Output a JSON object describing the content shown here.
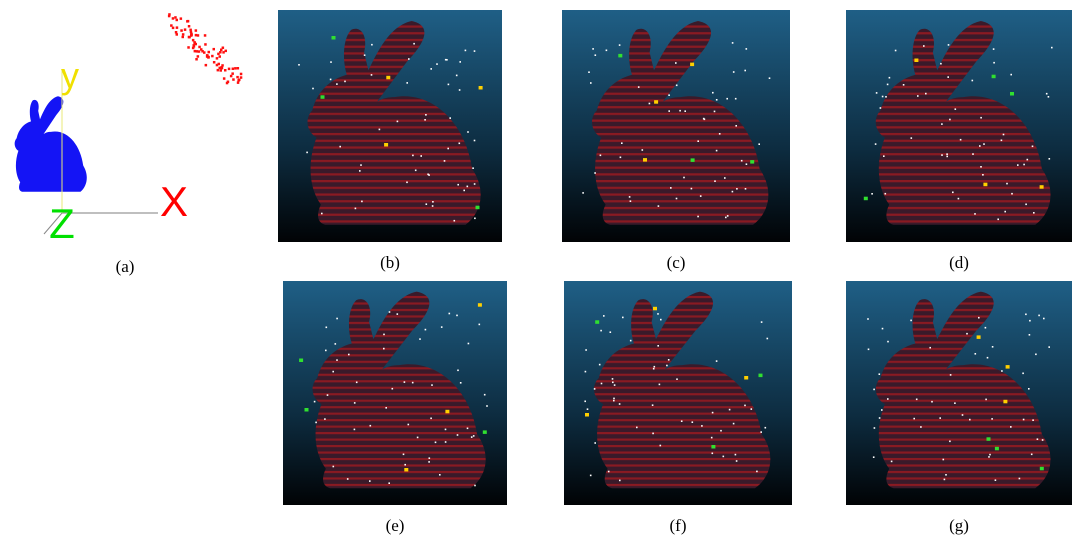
{
  "figure": {
    "panels": [
      {
        "label": "(a)"
      },
      {
        "label": "(b)"
      },
      {
        "label": "(c)"
      },
      {
        "label": "(d)"
      },
      {
        "label": "(e)"
      },
      {
        "label": "(f)"
      },
      {
        "label": "(g)"
      }
    ],
    "axes_labels": {
      "x": "X",
      "y": "y",
      "z": "Z"
    }
  }
}
